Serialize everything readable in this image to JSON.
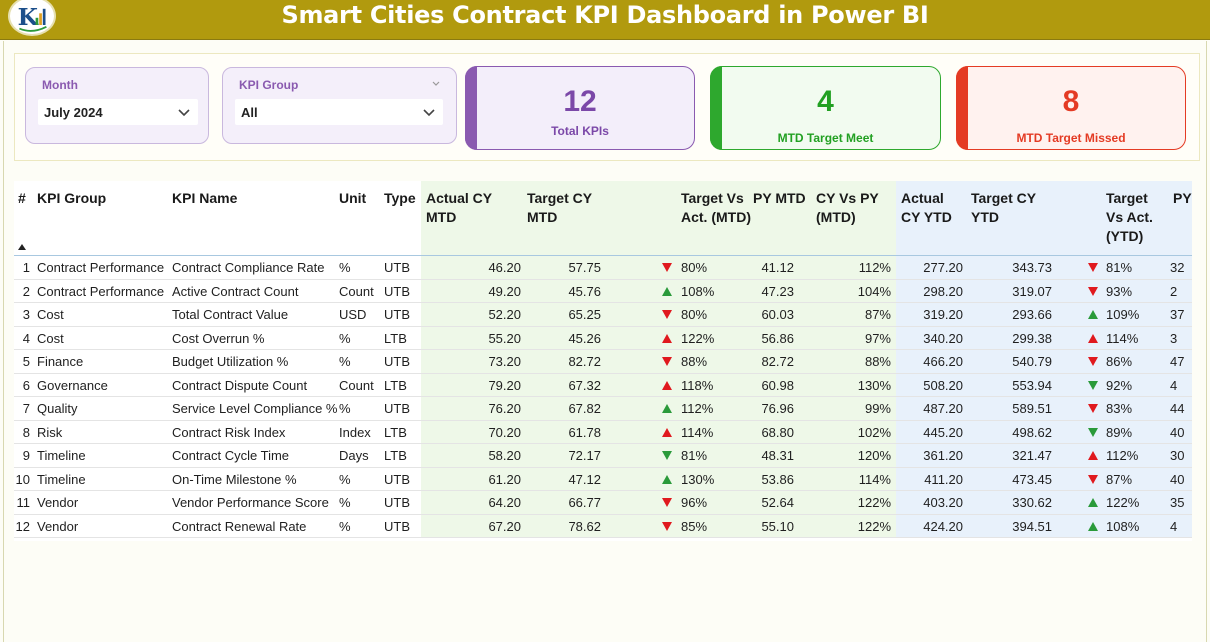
{
  "header": {
    "title": "Smart Cities Contract KPI Dashboard in Power BI",
    "logo_text": "K"
  },
  "filters": {
    "month": {
      "label": "Month",
      "value": "July 2024"
    },
    "kpi_group": {
      "label": "KPI Group",
      "value": "All"
    }
  },
  "cards": {
    "total": {
      "value": "12",
      "label": "Total KPIs"
    },
    "meet": {
      "value": "4",
      "label": "MTD Target Meet"
    },
    "missed": {
      "value": "8",
      "label": "MTD Target Missed"
    }
  },
  "table": {
    "headers": {
      "num": "#",
      "group": "KPI Group",
      "name": "KPI Name",
      "unit": "Unit",
      "type": "Type",
      "actual_mtd": "Actual CY MTD",
      "target_mtd": "Target CY MTD",
      "tvsa_mtd": "Target Vs Act. (MTD)",
      "py_mtd": "PY MTD",
      "cyvspy_mtd": "CY Vs PY (MTD)",
      "actual_ytd": "Actual CY YTD",
      "target_ytd": "Target CY YTD",
      "tvsa_ytd": "Target Vs Act. (YTD)",
      "py_ytd": "PY"
    },
    "colors": {
      "up": "#2a9a3a",
      "down": "#e0191e",
      "up_red": "#e0191e"
    },
    "rows": [
      {
        "num": "1",
        "group": "Contract Performance",
        "name": "Contract Compliance Rate",
        "unit": "%",
        "type": "UTB",
        "actual_mtd": "46.20",
        "target_mtd": "57.75",
        "mtd_icon": "down-red",
        "mtd_pct": "80%",
        "py_mtd": "41.12",
        "cyvspy": "112%",
        "actual_ytd": "277.20",
        "target_ytd": "343.73",
        "ytd_icon": "down-red",
        "ytd_pct": "81%",
        "py_ytd": "32"
      },
      {
        "num": "2",
        "group": "Contract Performance",
        "name": "Active Contract Count",
        "unit": "Count",
        "type": "UTB",
        "actual_mtd": "49.20",
        "target_mtd": "45.76",
        "mtd_icon": "up-green",
        "mtd_pct": "108%",
        "py_mtd": "47.23",
        "cyvspy": "104%",
        "actual_ytd": "298.20",
        "target_ytd": "319.07",
        "ytd_icon": "down-red",
        "ytd_pct": "93%",
        "py_ytd": "2"
      },
      {
        "num": "3",
        "group": "Cost",
        "name": "Total Contract Value",
        "unit": "USD",
        "type": "UTB",
        "actual_mtd": "52.20",
        "target_mtd": "65.25",
        "mtd_icon": "down-red",
        "mtd_pct": "80%",
        "py_mtd": "60.03",
        "cyvspy": "87%",
        "actual_ytd": "319.20",
        "target_ytd": "293.66",
        "ytd_icon": "up-green",
        "ytd_pct": "109%",
        "py_ytd": "37"
      },
      {
        "num": "4",
        "group": "Cost",
        "name": "Cost Overrun %",
        "unit": "%",
        "type": "LTB",
        "actual_mtd": "55.20",
        "target_mtd": "45.26",
        "mtd_icon": "up-red",
        "mtd_pct": "122%",
        "py_mtd": "56.86",
        "cyvspy": "97%",
        "actual_ytd": "340.20",
        "target_ytd": "299.38",
        "ytd_icon": "up-red",
        "ytd_pct": "114%",
        "py_ytd": "3"
      },
      {
        "num": "5",
        "group": "Finance",
        "name": "Budget Utilization %",
        "unit": "%",
        "type": "UTB",
        "actual_mtd": "73.20",
        "target_mtd": "82.72",
        "mtd_icon": "down-red",
        "mtd_pct": "88%",
        "py_mtd": "82.72",
        "cyvspy": "88%",
        "actual_ytd": "466.20",
        "target_ytd": "540.79",
        "ytd_icon": "down-red",
        "ytd_pct": "86%",
        "py_ytd": "47"
      },
      {
        "num": "6",
        "group": "Governance",
        "name": "Contract Dispute Count",
        "unit": "Count",
        "type": "LTB",
        "actual_mtd": "79.20",
        "target_mtd": "67.32",
        "mtd_icon": "up-red",
        "mtd_pct": "118%",
        "py_mtd": "60.98",
        "cyvspy": "130%",
        "actual_ytd": "508.20",
        "target_ytd": "553.94",
        "ytd_icon": "down-green",
        "ytd_pct": "92%",
        "py_ytd": "4"
      },
      {
        "num": "7",
        "group": "Quality",
        "name": "Service Level Compliance %",
        "unit": "%",
        "type": "UTB",
        "actual_mtd": "76.20",
        "target_mtd": "67.82",
        "mtd_icon": "up-green",
        "mtd_pct": "112%",
        "py_mtd": "76.96",
        "cyvspy": "99%",
        "actual_ytd": "487.20",
        "target_ytd": "589.51",
        "ytd_icon": "down-red",
        "ytd_pct": "83%",
        "py_ytd": "44"
      },
      {
        "num": "8",
        "group": "Risk",
        "name": "Contract Risk Index",
        "unit": "Index",
        "type": "LTB",
        "actual_mtd": "70.20",
        "target_mtd": "61.78",
        "mtd_icon": "up-red",
        "mtd_pct": "114%",
        "py_mtd": "68.80",
        "cyvspy": "102%",
        "actual_ytd": "445.20",
        "target_ytd": "498.62",
        "ytd_icon": "down-green",
        "ytd_pct": "89%",
        "py_ytd": "40"
      },
      {
        "num": "9",
        "group": "Timeline",
        "name": "Contract Cycle Time",
        "unit": "Days",
        "type": "LTB",
        "actual_mtd": "58.20",
        "target_mtd": "72.17",
        "mtd_icon": "down-green",
        "mtd_pct": "81%",
        "py_mtd": "48.31",
        "cyvspy": "120%",
        "actual_ytd": "361.20",
        "target_ytd": "321.47",
        "ytd_icon": "up-red",
        "ytd_pct": "112%",
        "py_ytd": "30"
      },
      {
        "num": "10",
        "group": "Timeline",
        "name": "On-Time Milestone %",
        "unit": "%",
        "type": "UTB",
        "actual_mtd": "61.20",
        "target_mtd": "47.12",
        "mtd_icon": "up-green",
        "mtd_pct": "130%",
        "py_mtd": "53.86",
        "cyvspy": "114%",
        "actual_ytd": "411.20",
        "target_ytd": "473.45",
        "ytd_icon": "down-red",
        "ytd_pct": "87%",
        "py_ytd": "40"
      },
      {
        "num": "11",
        "group": "Vendor",
        "name": "Vendor Performance Score",
        "unit": "%",
        "type": "UTB",
        "actual_mtd": "64.20",
        "target_mtd": "66.77",
        "mtd_icon": "down-red",
        "mtd_pct": "96%",
        "py_mtd": "52.64",
        "cyvspy": "122%",
        "actual_ytd": "403.20",
        "target_ytd": "330.62",
        "ytd_icon": "up-green",
        "ytd_pct": "122%",
        "py_ytd": "35"
      },
      {
        "num": "12",
        "group": "Vendor",
        "name": "Contract Renewal Rate",
        "unit": "%",
        "type": "UTB",
        "actual_mtd": "67.20",
        "target_mtd": "78.62",
        "mtd_icon": "down-red",
        "mtd_pct": "85%",
        "py_mtd": "55.10",
        "cyvspy": "122%",
        "actual_ytd": "424.20",
        "target_ytd": "394.51",
        "ytd_icon": "up-green",
        "ytd_pct": "108%",
        "py_ytd": "4"
      }
    ]
  }
}
